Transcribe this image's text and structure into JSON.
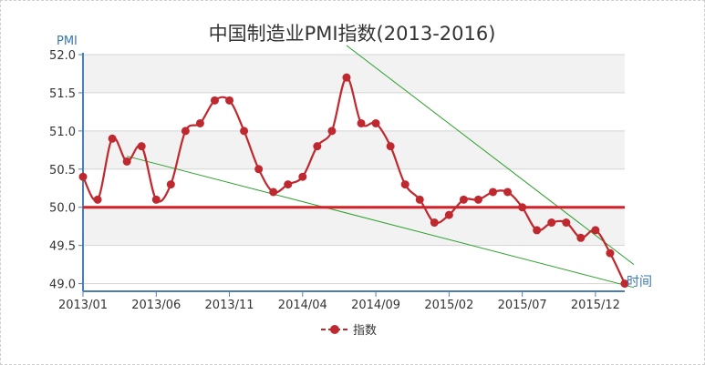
{
  "chart_data": {
    "type": "line",
    "title": "中国制造业PMI指数(2013-2016)",
    "ylabel": "PMI",
    "xlabel": "时间",
    "ylim": [
      48.9,
      52.0
    ],
    "yticks": [
      "52.0",
      "51.5",
      "51.0",
      "50.5",
      "50.0",
      "49.5",
      "49.0"
    ],
    "x_tick_labels": [
      "2013/01",
      "2013/06",
      "2013/11",
      "2014/04",
      "2014/09",
      "2015/02",
      "2015/07",
      "2015/12"
    ],
    "x": [
      "2013/01",
      "2013/02",
      "2013/03",
      "2013/04",
      "2013/05",
      "2013/06",
      "2013/07",
      "2013/08",
      "2013/09",
      "2013/10",
      "2013/11",
      "2013/12",
      "2014/01",
      "2014/02",
      "2014/03",
      "2014/04",
      "2014/05",
      "2014/06",
      "2014/07",
      "2014/08",
      "2014/09",
      "2014/10",
      "2014/11",
      "2014/12",
      "2015/01",
      "2015/02",
      "2015/03",
      "2015/04",
      "2015/05",
      "2015/06",
      "2015/07",
      "2015/08",
      "2015/09",
      "2015/10",
      "2015/11",
      "2015/12",
      "2016/01",
      "2016/02"
    ],
    "series": [
      {
        "name": "指数",
        "color": "#c0282f",
        "values": [
          50.4,
          50.1,
          50.9,
          50.6,
          50.8,
          50.1,
          50.3,
          51.0,
          51.1,
          51.4,
          51.4,
          51.0,
          50.5,
          50.2,
          50.3,
          50.4,
          50.8,
          51.0,
          51.7,
          51.1,
          51.1,
          50.8,
          50.3,
          50.1,
          49.8,
          49.9,
          50.1,
          50.1,
          50.2,
          50.2,
          50.0,
          49.7,
          49.8,
          49.8,
          49.6,
          49.7,
          49.4,
          49.0
        ]
      }
    ],
    "reference_line": {
      "value": 50.0,
      "color": "#d42128"
    },
    "trend_lines": [
      {
        "color": "#2ca02c",
        "points": [
          [
            "2013/04",
            50.67
          ],
          [
            "2016/02",
            48.95
          ]
        ]
      },
      {
        "color": "#2ca02c",
        "points": [
          [
            "2014/07",
            52.12
          ],
          [
            "2016/02",
            49.25
          ]
        ]
      }
    ],
    "grid": true,
    "legend_position": "bottom"
  }
}
